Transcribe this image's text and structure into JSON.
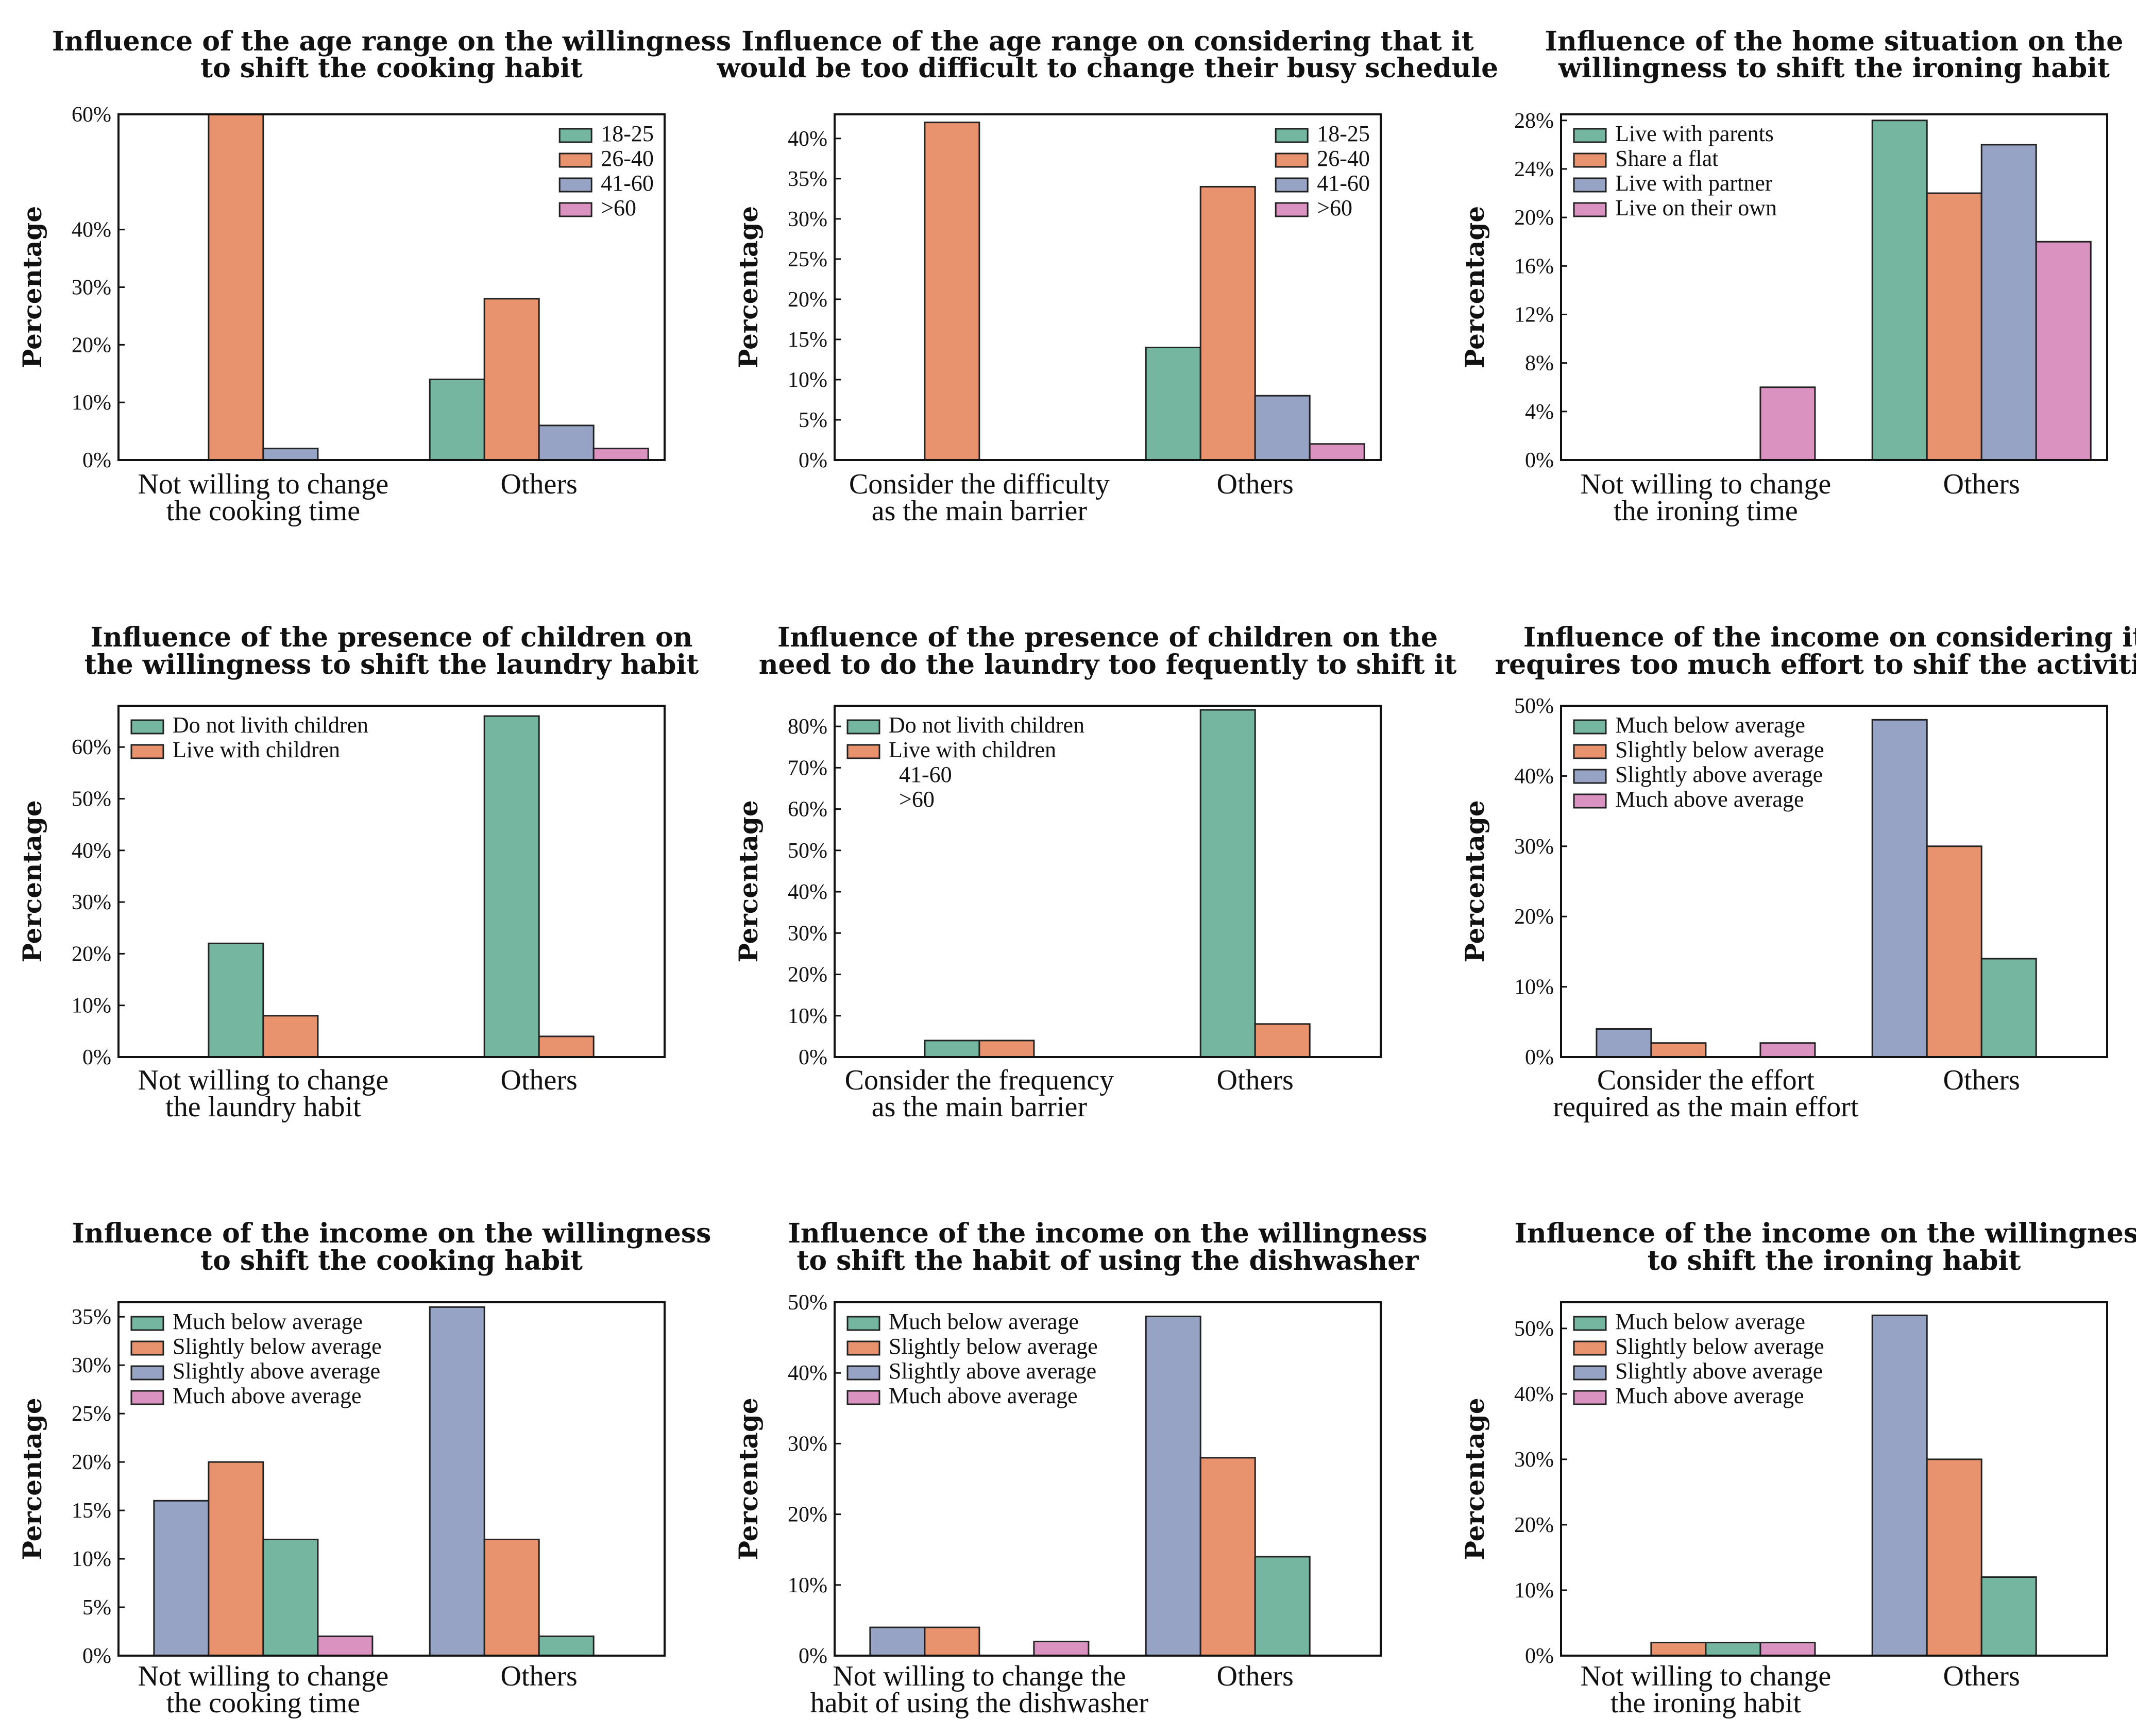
{
  "colors": {
    "green": "#74B6A0",
    "orange": "#E8926E",
    "blue": "#96A3C4",
    "pink": "#DA93C0"
  },
  "chart_data": [
    {
      "type": "bar",
      "title": [
        "Influence of the age range on the willingness",
        "to shift the cooking habit"
      ],
      "ylabel": "Percentage",
      "categories": [
        [
          "Not willing to change",
          "the cooking time"
        ],
        [
          "Others"
        ]
      ],
      "yticks": [
        0,
        10,
        20,
        30,
        40,
        60
      ],
      "ylim": [
        0,
        60
      ],
      "legend_position": "top-right",
      "series": [
        {
          "name": "18-25",
          "color": "green",
          "values": [
            0,
            14
          ]
        },
        {
          "name": "26-40",
          "color": "orange",
          "values": [
            60,
            28
          ]
        },
        {
          "name": "41-60",
          "color": "blue",
          "values": [
            2,
            6
          ]
        },
        {
          "name": ">60",
          "color": "pink",
          "values": [
            0,
            2
          ]
        }
      ]
    },
    {
      "type": "bar",
      "title": [
        "Influence of the age range on considering that it",
        "would be too difficult to change their busy schedule"
      ],
      "ylabel": "Percentage",
      "categories": [
        [
          "Consider the difficulty",
          "as the main barrier"
        ],
        [
          "Others"
        ]
      ],
      "yticks": [
        0,
        5,
        10,
        15,
        20,
        25,
        30,
        35,
        40
      ],
      "ylim": [
        0,
        43
      ],
      "legend_position": "top-right",
      "series": [
        {
          "name": "18-25",
          "color": "green",
          "values": [
            0,
            14
          ]
        },
        {
          "name": "26-40",
          "color": "orange",
          "values": [
            42,
            34
          ]
        },
        {
          "name": "41-60",
          "color": "blue",
          "values": [
            0,
            8
          ]
        },
        {
          "name": ">60",
          "color": "pink",
          "values": [
            0,
            2
          ]
        }
      ]
    },
    {
      "type": "bar",
      "title": [
        "Influence of the home situation on the",
        "willingness to shift the ironing habit"
      ],
      "ylabel": "Percentage",
      "categories": [
        [
          "Not willing to change",
          "the ironing time"
        ],
        [
          "Others"
        ]
      ],
      "yticks": [
        0,
        4,
        8,
        12,
        16,
        20,
        24,
        28
      ],
      "ylim": [
        0,
        28.5
      ],
      "legend_position": "top-left",
      "series": [
        {
          "name": "Live with parents",
          "color": "green",
          "values": [
            0,
            28
          ]
        },
        {
          "name": "Share a flat",
          "color": "orange",
          "values": [
            0,
            22
          ]
        },
        {
          "name": "Live with partner",
          "color": "blue",
          "values": [
            0,
            26
          ]
        },
        {
          "name": "Live on their own",
          "color": "pink",
          "values": [
            6,
            18
          ]
        }
      ]
    },
    {
      "type": "bar",
      "title": [
        "Influence of the presence of children on",
        "the willingness to shift the laundry habit"
      ],
      "ylabel": "Percentage",
      "categories": [
        [
          "Not willing to change",
          "the laundry habit"
        ],
        [
          "Others"
        ]
      ],
      "yticks": [
        0,
        10,
        20,
        30,
        40,
        50,
        60
      ],
      "ylim": [
        0,
        68
      ],
      "legend_position": "top-left",
      "series": [
        {
          "name": "Do not livith children",
          "color": "green",
          "values": [
            22,
            66
          ]
        },
        {
          "name": "Live with children",
          "color": "orange",
          "values": [
            8,
            4
          ]
        }
      ]
    },
    {
      "type": "bar",
      "title": [
        "Influence of the presence of children on the",
        "need to do the laundry too fequently to shift it"
      ],
      "ylabel": "Percentage",
      "categories": [
        [
          "Consider the frequency",
          "as the main barrier"
        ],
        [
          "Others"
        ]
      ],
      "yticks": [
        0,
        10,
        20,
        30,
        40,
        50,
        60,
        70,
        80
      ],
      "ylim": [
        0,
        85
      ],
      "legend_position": "top-left",
      "legend_extra": [
        "41-60",
        ">60"
      ],
      "series": [
        {
          "name": "Do not livith children",
          "color": "green",
          "values": [
            4,
            84
          ]
        },
        {
          "name": "Live with children",
          "color": "orange",
          "values": [
            4,
            8
          ]
        }
      ]
    },
    {
      "type": "bar",
      "title": [
        "Influence of the income on considering it",
        "requires too much effort to shif the activities"
      ],
      "ylabel": "Percentage",
      "categories": [
        [
          "Consider the effort",
          "required as the main effort"
        ],
        [
          "Others"
        ]
      ],
      "yticks": [
        0,
        10,
        20,
        30,
        40,
        50
      ],
      "ylim": [
        0,
        50
      ],
      "legend_position": "top-left",
      "legend_series": [
        {
          "name": "Much below average",
          "color": "green"
        },
        {
          "name": "Slightly below average",
          "color": "orange"
        },
        {
          "name": "Slightly above average",
          "color": "blue"
        },
        {
          "name": "Much above average",
          "color": "pink"
        }
      ],
      "series": [
        {
          "name": "Slightly above average",
          "color": "blue",
          "values": [
            4,
            48
          ]
        },
        {
          "name": "Slightly below average",
          "color": "orange",
          "values": [
            2,
            30
          ]
        },
        {
          "name": "Much below average",
          "color": "green",
          "values": [
            0,
            14
          ]
        },
        {
          "name": "Much above average",
          "color": "pink",
          "values": [
            2,
            0
          ]
        }
      ]
    },
    {
      "type": "bar",
      "title": [
        "Influence of the income on the willingness",
        "to shift the cooking habit"
      ],
      "ylabel": "Percentage",
      "categories": [
        [
          "Not willing to change",
          "the cooking time"
        ],
        [
          "Others"
        ]
      ],
      "yticks": [
        0,
        5,
        10,
        15,
        20,
        25,
        30,
        35
      ],
      "ylim": [
        0,
        36.5
      ],
      "legend_position": "top-left",
      "legend_series": [
        {
          "name": "Much below average",
          "color": "green"
        },
        {
          "name": "Slightly below average",
          "color": "orange"
        },
        {
          "name": "Slightly above average",
          "color": "blue"
        },
        {
          "name": "Much above average",
          "color": "pink"
        }
      ],
      "series": [
        {
          "name": "Slightly above average",
          "color": "blue",
          "values": [
            16,
            36
          ]
        },
        {
          "name": "Slightly below average",
          "color": "orange",
          "values": [
            20,
            12
          ]
        },
        {
          "name": "Much below average",
          "color": "green",
          "values": [
            12,
            2
          ]
        },
        {
          "name": "Much above average",
          "color": "pink",
          "values": [
            2,
            0
          ]
        }
      ]
    },
    {
      "type": "bar",
      "title": [
        "Influence of the income on the willingness",
        "to shift the habit of using the dishwasher"
      ],
      "ylabel": "Percentage",
      "categories": [
        [
          "Not willing to change the",
          "habit of using the dishwasher"
        ],
        [
          "Others"
        ]
      ],
      "yticks": [
        0,
        10,
        20,
        30,
        40,
        50
      ],
      "ylim": [
        0,
        50
      ],
      "legend_position": "top-left",
      "legend_series": [
        {
          "name": "Much below average",
          "color": "green"
        },
        {
          "name": "Slightly below average",
          "color": "orange"
        },
        {
          "name": "Slightly above average",
          "color": "blue"
        },
        {
          "name": "Much above average",
          "color": "pink"
        }
      ],
      "series": [
        {
          "name": "Slightly above average",
          "color": "blue",
          "values": [
            4,
            48
          ]
        },
        {
          "name": "Slightly below average",
          "color": "orange",
          "values": [
            4,
            28
          ]
        },
        {
          "name": "Much below average",
          "color": "green",
          "values": [
            0,
            14
          ]
        },
        {
          "name": "Much above average",
          "color": "pink",
          "values": [
            2,
            0
          ]
        }
      ]
    },
    {
      "type": "bar",
      "title": [
        "Influence of the income on the willingness",
        "to shift the ironing habit"
      ],
      "ylabel": "Percentage",
      "categories": [
        [
          "Not willing to change",
          "the ironing habit"
        ],
        [
          "Others"
        ]
      ],
      "yticks": [
        0,
        10,
        20,
        30,
        40,
        50
      ],
      "ylim": [
        0,
        54
      ],
      "legend_position": "top-left",
      "legend_series": [
        {
          "name": "Much below average",
          "color": "green"
        },
        {
          "name": "Slightly below average",
          "color": "orange"
        },
        {
          "name": "Slightly above average",
          "color": "blue"
        },
        {
          "name": "Much above average",
          "color": "pink"
        }
      ],
      "series": [
        {
          "name": "Slightly above average",
          "color": "blue",
          "values": [
            0,
            52
          ]
        },
        {
          "name": "Slightly below average",
          "color": "orange",
          "values": [
            2,
            30
          ]
        },
        {
          "name": "Much below average",
          "color": "green",
          "values": [
            2,
            12
          ]
        },
        {
          "name": "Much above average",
          "color": "pink",
          "values": [
            2,
            0
          ]
        }
      ]
    }
  ]
}
